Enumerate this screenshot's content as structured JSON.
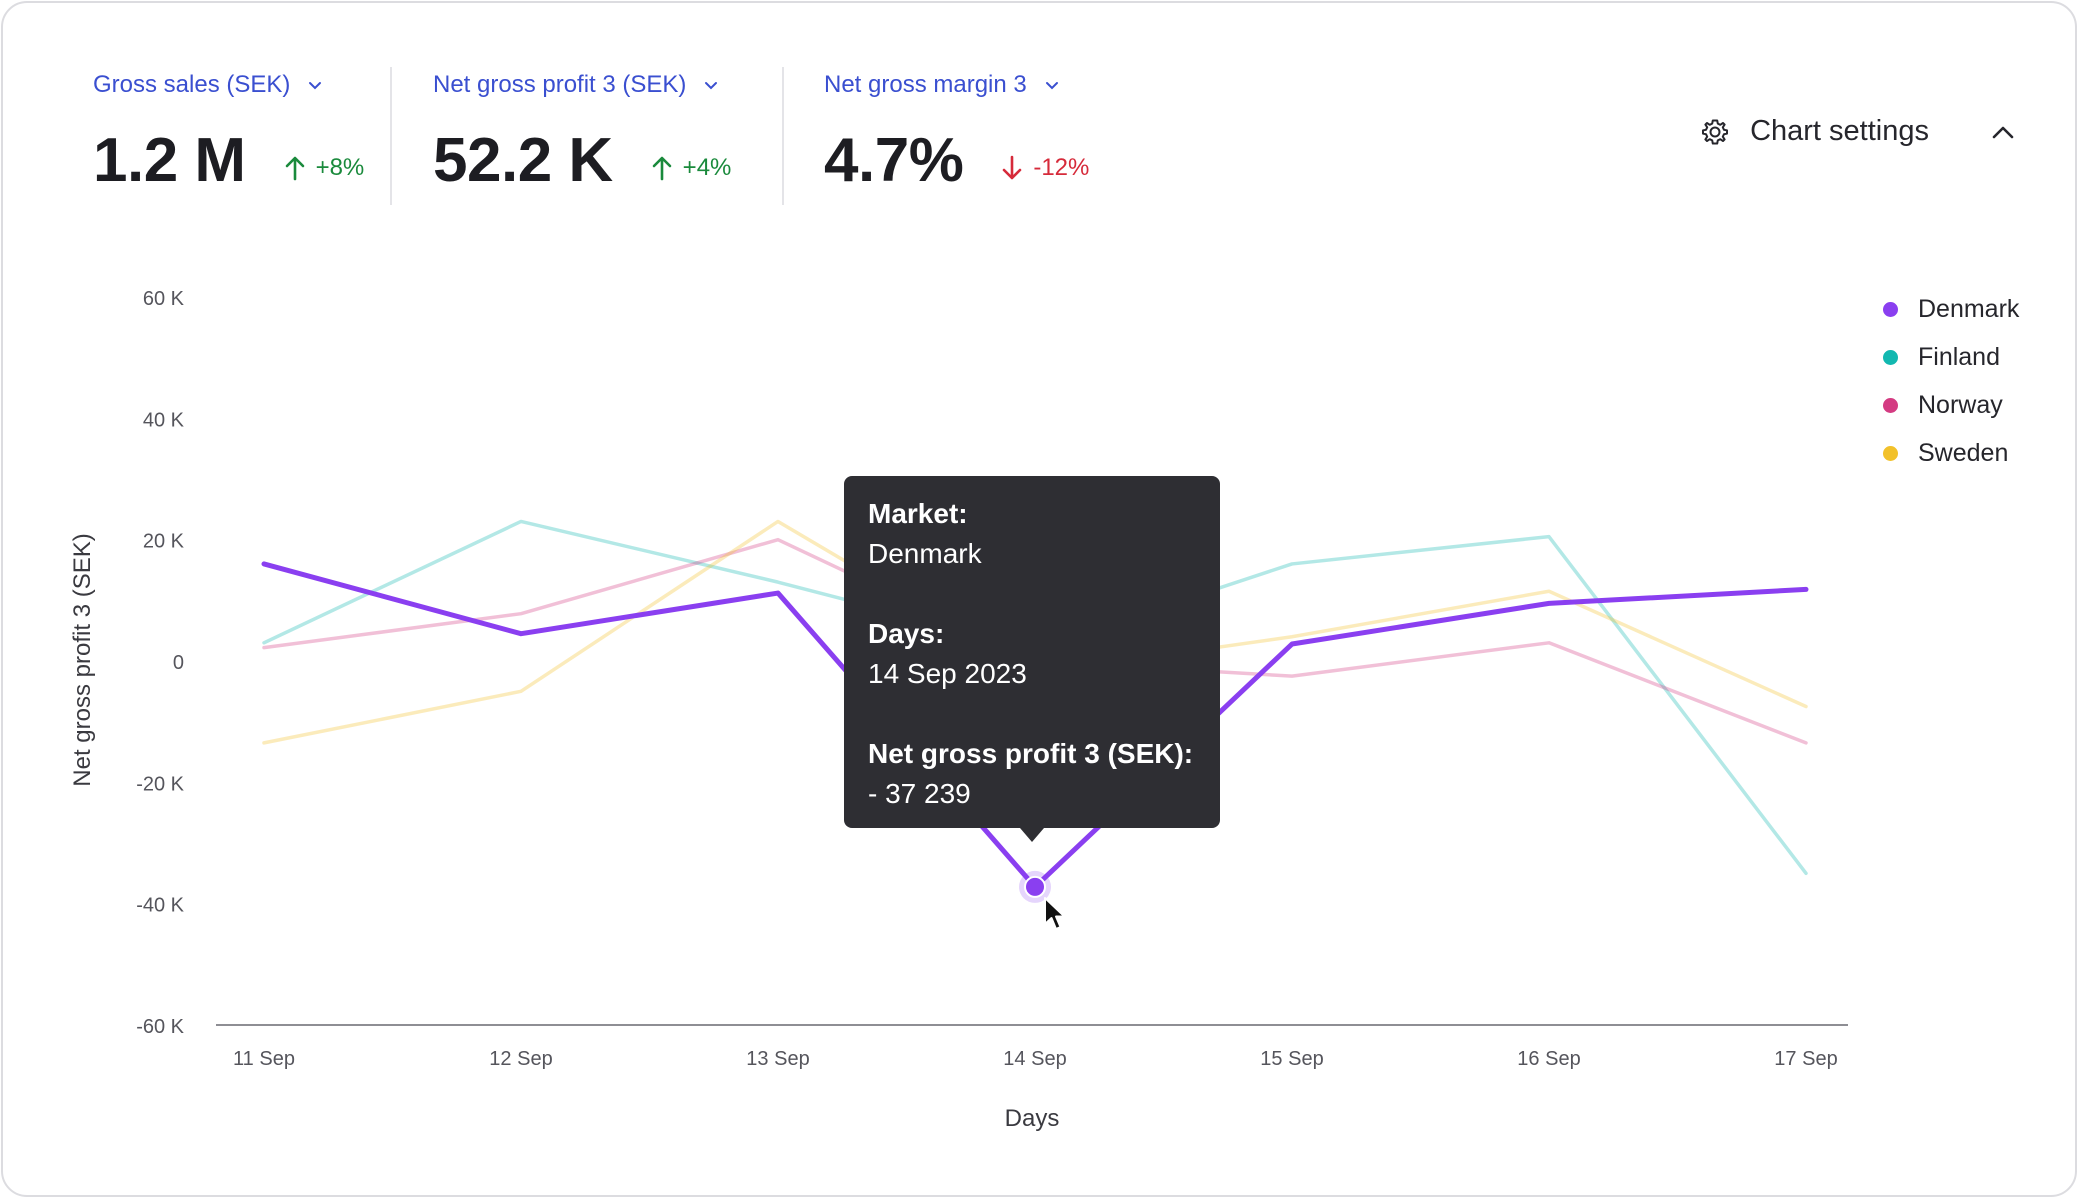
{
  "kpis": [
    {
      "label": "Gross sales (SEK)",
      "value": "1.2 M",
      "delta": "+8%",
      "direction": "up",
      "color": "#1a8a3c"
    },
    {
      "label": "Net gross profit 3 (SEK)",
      "value": "52.2 K",
      "delta": "+4%",
      "direction": "up",
      "color": "#1a8a3c"
    },
    {
      "label": "Net gross margin 3",
      "value": "4.7%",
      "delta": "-12%",
      "direction": "down",
      "color": "#d62a3a"
    }
  ],
  "settings": {
    "label": "Chart settings",
    "icon": "gear-icon",
    "caret_icon": "chevron-up-icon"
  },
  "colors": {
    "accent": "#3a4fd0",
    "tooltip_bg": "#2e2e33"
  },
  "tooltip": {
    "market_label": "Market:",
    "market_value": "Denmark",
    "days_label": "Days:",
    "days_value": "14 Sep 2023",
    "metric_label": "Net gross profit 3 (SEK):",
    "metric_value": "- 37 239"
  },
  "chart_data": {
    "type": "line",
    "xlabel": "Days",
    "ylabel": "Net gross profit 3 (SEK)",
    "categories": [
      "11 Sep",
      "12 Sep",
      "13 Sep",
      "14 Sep",
      "15 Sep",
      "16 Sep",
      "17 Sep"
    ],
    "ylim": [
      -60000,
      60000
    ],
    "yticks": [
      {
        "value": 60000,
        "label": "60 K"
      },
      {
        "value": 40000,
        "label": "40 K"
      },
      {
        "value": 20000,
        "label": "20 K"
      },
      {
        "value": 0,
        "label": "0"
      },
      {
        "value": -20000,
        "label": "-20 K"
      },
      {
        "value": -40000,
        "label": "-40 K"
      },
      {
        "value": -60000,
        "label": "-60 K"
      }
    ],
    "grid": false,
    "legend_position": "right",
    "highlighted": {
      "series": "Denmark",
      "x": "14 Sep",
      "y": -37239
    },
    "series": [
      {
        "name": "Denmark",
        "color": "#8a3ff0",
        "highlighted": true,
        "values": [
          16000,
          4500,
          11200,
          -37239,
          2800,
          9500,
          11800
        ]
      },
      {
        "name": "Finland",
        "color": "#12b8b0",
        "highlighted": false,
        "values": [
          3000,
          23000,
          13000,
          2000,
          16000,
          20500,
          -35000
        ]
      },
      {
        "name": "Norway",
        "color": "#d43b82",
        "highlighted": false,
        "values": [
          2200,
          7800,
          20000,
          0,
          -2500,
          3000,
          -13500
        ]
      },
      {
        "name": "Sweden",
        "color": "#f2c12a",
        "highlighted": false,
        "values": [
          -13500,
          -5000,
          23000,
          -2000,
          4000,
          11500,
          -7500
        ]
      }
    ]
  }
}
